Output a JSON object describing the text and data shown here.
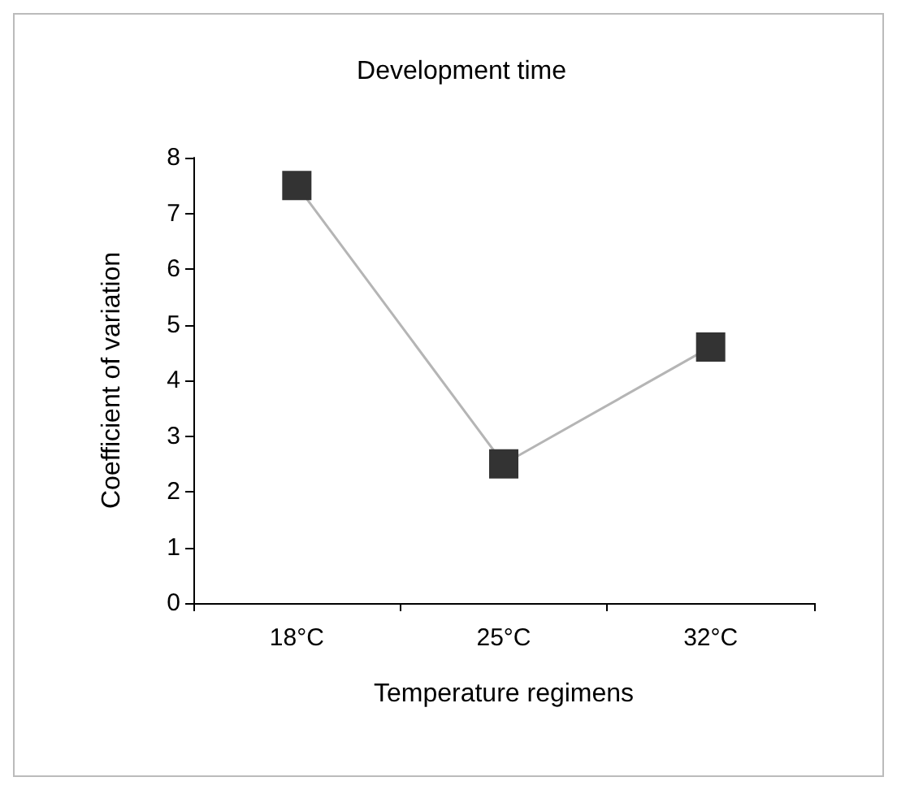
{
  "chart_data": {
    "type": "line",
    "title": "Development time",
    "xlabel": "Temperature regimens",
    "ylabel": "Coefficient of variation",
    "categories": [
      "18°C",
      "25°C",
      "32°C"
    ],
    "series": [
      {
        "color": "#333333",
        "values": [
          7.5,
          2.5,
          4.6
        ]
      }
    ],
    "ylim": [
      0,
      8
    ],
    "yticks": [
      0,
      1,
      2,
      3,
      4,
      5,
      6,
      7,
      8
    ],
    "grid": false,
    "marker": "square",
    "line_style": "solid"
  }
}
